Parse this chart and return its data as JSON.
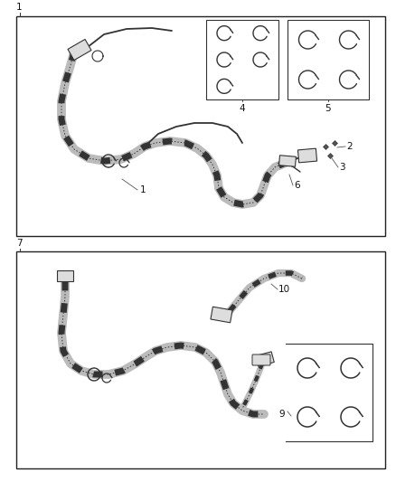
{
  "bg_color": "#ffffff",
  "lc": "#333333",
  "wire_color": "#555555",
  "braid_color": "#444444",
  "braid_light": "#cccccc",
  "figsize": [
    4.38,
    5.33
  ],
  "dpi": 100
}
